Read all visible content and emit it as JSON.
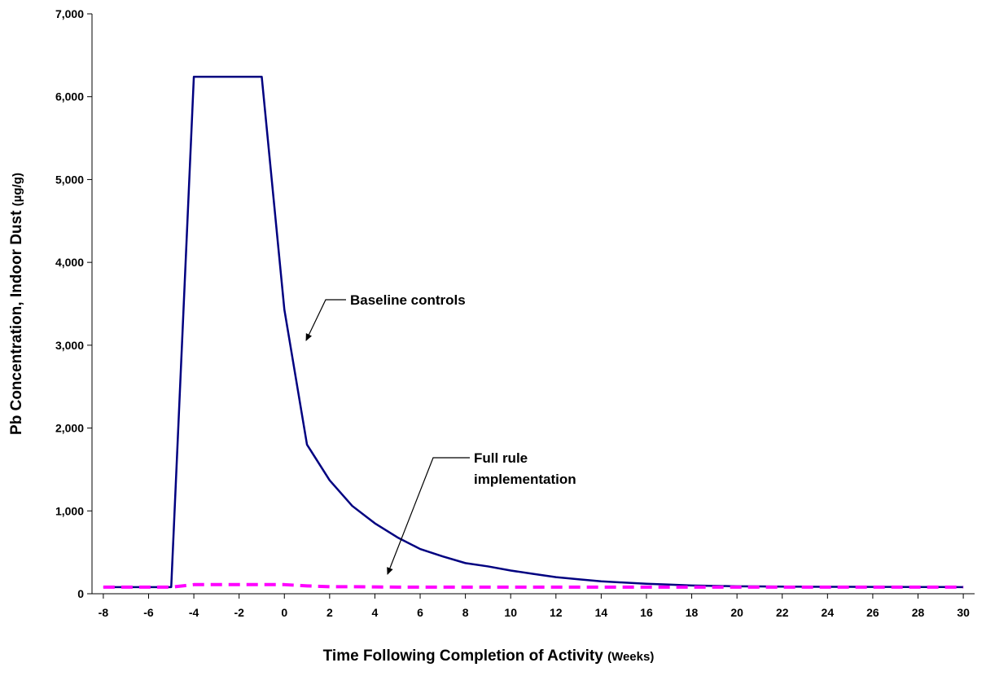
{
  "chart_data": {
    "type": "line",
    "x_label": "Time Following Completion of Activity",
    "x_label_unit": "(Weeks)",
    "y_label": "Pb Concentration, Indoor Dust",
    "y_label_unit": "(µg/g)",
    "x": [
      -8,
      -7,
      -6,
      -5,
      -4,
      -3,
      -2,
      -1,
      0,
      1,
      2,
      3,
      4,
      5,
      6,
      7,
      8,
      9,
      10,
      11,
      12,
      13,
      14,
      15,
      16,
      17,
      18,
      19,
      20,
      21,
      22,
      23,
      24,
      25,
      26,
      27,
      28,
      29,
      30
    ],
    "series": [
      {
        "color": "#000080",
        "style": "solid",
        "values": [
          80,
          80,
          80,
          80,
          6240,
          6240,
          6240,
          6240,
          3430,
          1800,
          1370,
          1060,
          850,
          680,
          540,
          450,
          370,
          330,
          280,
          240,
          200,
          175,
          150,
          135,
          120,
          110,
          100,
          95,
          90,
          88,
          86,
          85,
          84,
          83,
          82,
          82,
          81,
          81,
          80
        ]
      },
      {
        "color": "#ff00ff",
        "style": "dashed",
        "values": [
          80,
          80,
          80,
          80,
          110,
          110,
          110,
          110,
          110,
          95,
          85,
          85,
          82,
          80,
          80,
          80,
          80,
          80,
          80,
          80,
          80,
          80,
          80,
          80,
          80,
          80,
          80,
          80,
          80,
          80,
          80,
          80,
          80,
          80,
          80,
          80,
          80,
          80,
          80
        ]
      }
    ],
    "annotations": [
      {
        "lines": [
          "Baseline controls"
        ]
      },
      {
        "lines": [
          "Full rule",
          "implementation"
        ]
      }
    ],
    "xlim": [
      -8.5,
      30.5
    ],
    "xticks": [
      -8,
      -6,
      -4,
      -2,
      0,
      2,
      4,
      6,
      8,
      10,
      12,
      14,
      16,
      18,
      20,
      22,
      24,
      26,
      28,
      30
    ],
    "ylim": [
      0,
      7000
    ],
    "yticks": [
      0,
      {
        "value": 1000,
        "label": "1,000"
      },
      {
        "value": 2000,
        "label": "2,000"
      },
      {
        "value": 3000,
        "label": "3,000"
      },
      {
        "value": 4000,
        "label": "4,000"
      },
      {
        "value": 5000,
        "label": "5,000"
      },
      {
        "value": 6000,
        "label": "6,000"
      },
      {
        "value": 7000,
        "label": "7,000"
      }
    ],
    "grid": false
  }
}
